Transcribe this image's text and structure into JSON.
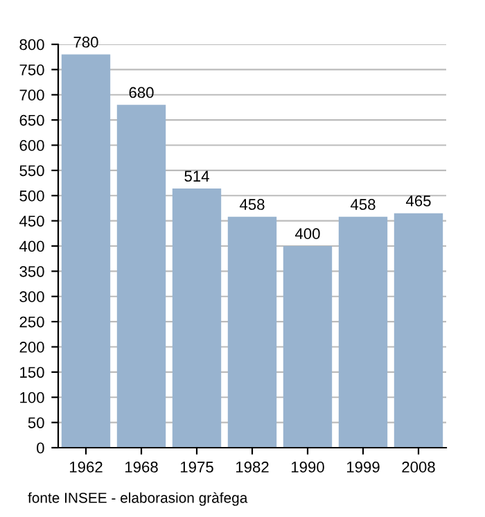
{
  "chart_data": {
    "type": "bar",
    "categories": [
      "1962",
      "1968",
      "1975",
      "1982",
      "1990",
      "1999",
      "2008"
    ],
    "values": [
      780,
      680,
      514,
      458,
      400,
      458,
      465
    ],
    "color": "#98b3cf",
    "ylim": [
      0,
      800
    ],
    "yticks": [
      0,
      50,
      100,
      150,
      200,
      250,
      300,
      350,
      400,
      450,
      500,
      550,
      600,
      650,
      700,
      750,
      800
    ],
    "grid": "y",
    "data_labels": true,
    "annotations": [
      "fonte INSEE - elaborasion gràfega"
    ]
  }
}
